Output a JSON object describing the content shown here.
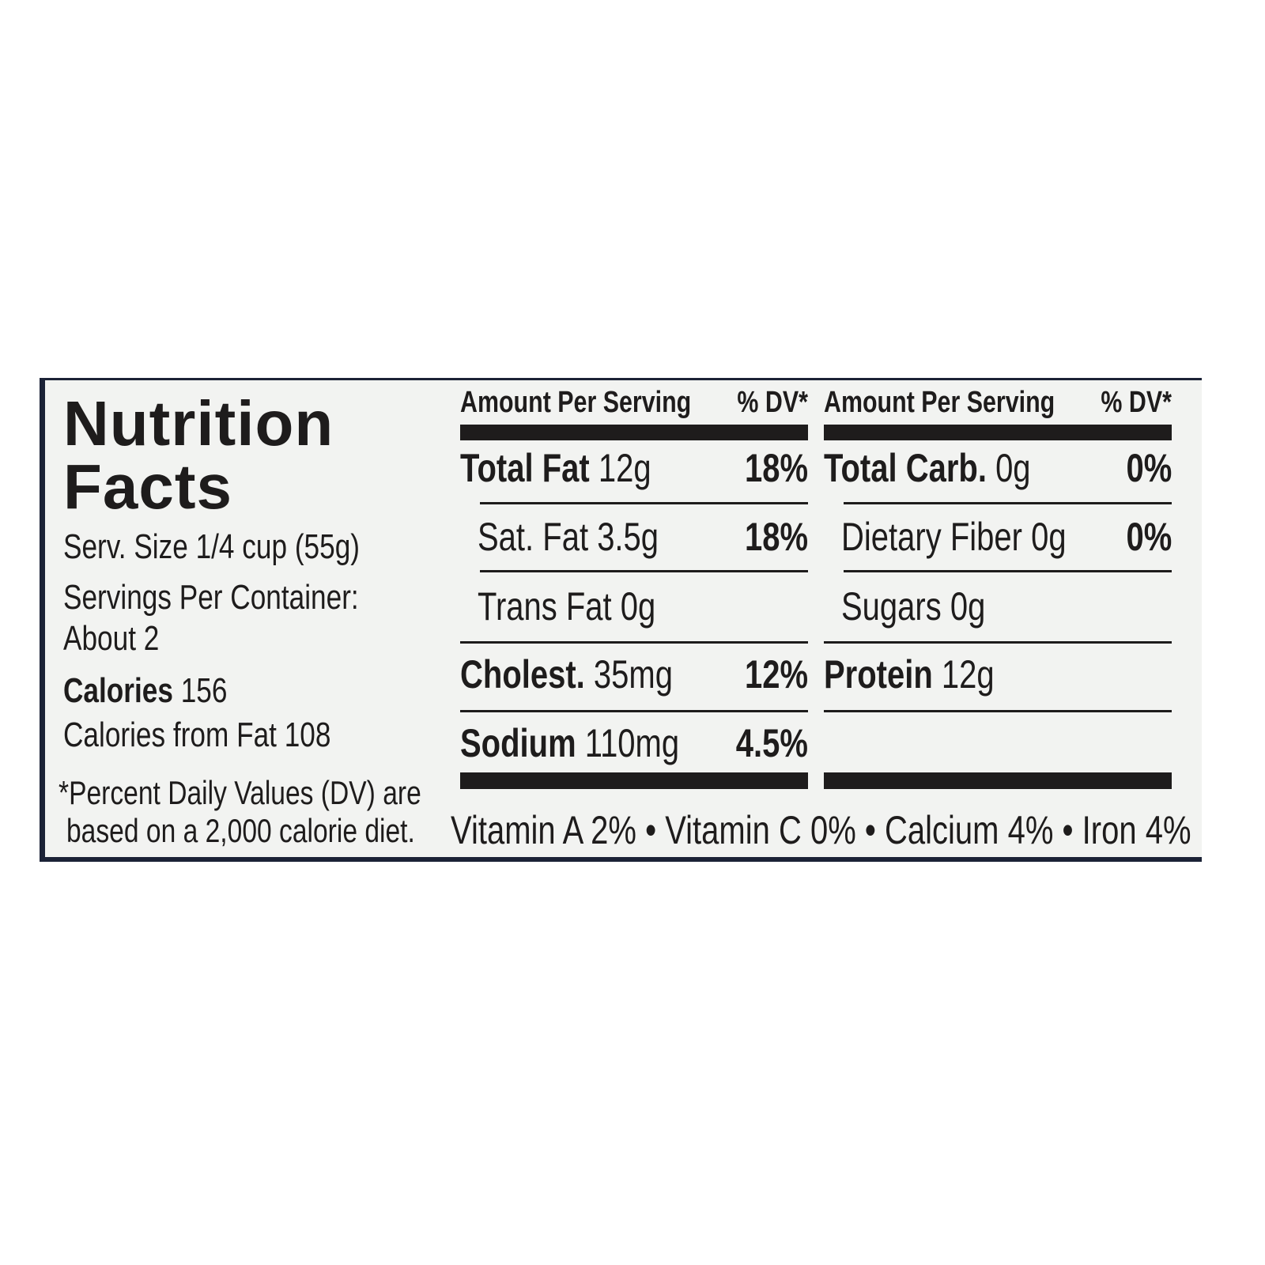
{
  "title_lines": [
    "Nutrition",
    "Facts"
  ],
  "serving_size": "Serv. Size 1/4 cup (55g)",
  "servings_lines": [
    "Servings Per Container:",
    "About 2"
  ],
  "calories_label": "Calories",
  "calories_value": "156",
  "calories_from_fat": "Calories from Fat 108",
  "footnote_lines": [
    "*Percent Daily Values (DV) are",
    "based on a 2,000 calorie diet."
  ],
  "columns": [
    {
      "header_amount": "Amount Per Serving",
      "header_dv": "% DV*",
      "rows": [
        {
          "name": "Total Fat",
          "amount": "12g",
          "dv": "18%",
          "bold": true,
          "indent": false
        },
        {
          "name": "Sat. Fat",
          "amount": "3.5g",
          "dv": "18%",
          "bold": false,
          "indent": true
        },
        {
          "name": "Trans Fat",
          "amount": "0g",
          "dv": null,
          "bold": false,
          "indent": true
        },
        {
          "name": "Cholest.",
          "amount": "35mg",
          "dv": "12%",
          "bold": true,
          "indent": false
        },
        {
          "name": "Sodium",
          "amount": "110mg",
          "dv": "4.5%",
          "bold": true,
          "indent": false
        }
      ]
    },
    {
      "header_amount": "Amount Per Serving",
      "header_dv": "% DV*",
      "rows": [
        {
          "name": "Total Carb.",
          "amount": "0g",
          "dv": "0%",
          "bold": true,
          "indent": false
        },
        {
          "name": "Dietary Fiber",
          "amount": "0g",
          "dv": "0%",
          "bold": false,
          "indent": true
        },
        {
          "name": "Sugars",
          "amount": "0g",
          "dv": null,
          "bold": false,
          "indent": true
        },
        {
          "name": "Protein",
          "amount": "12g",
          "dv": null,
          "bold": true,
          "indent": false
        }
      ]
    }
  ],
  "vitamins": [
    "Vitamin A 2%",
    "Vitamin C 0%",
    "Calcium 4%",
    "Iron 4%"
  ]
}
